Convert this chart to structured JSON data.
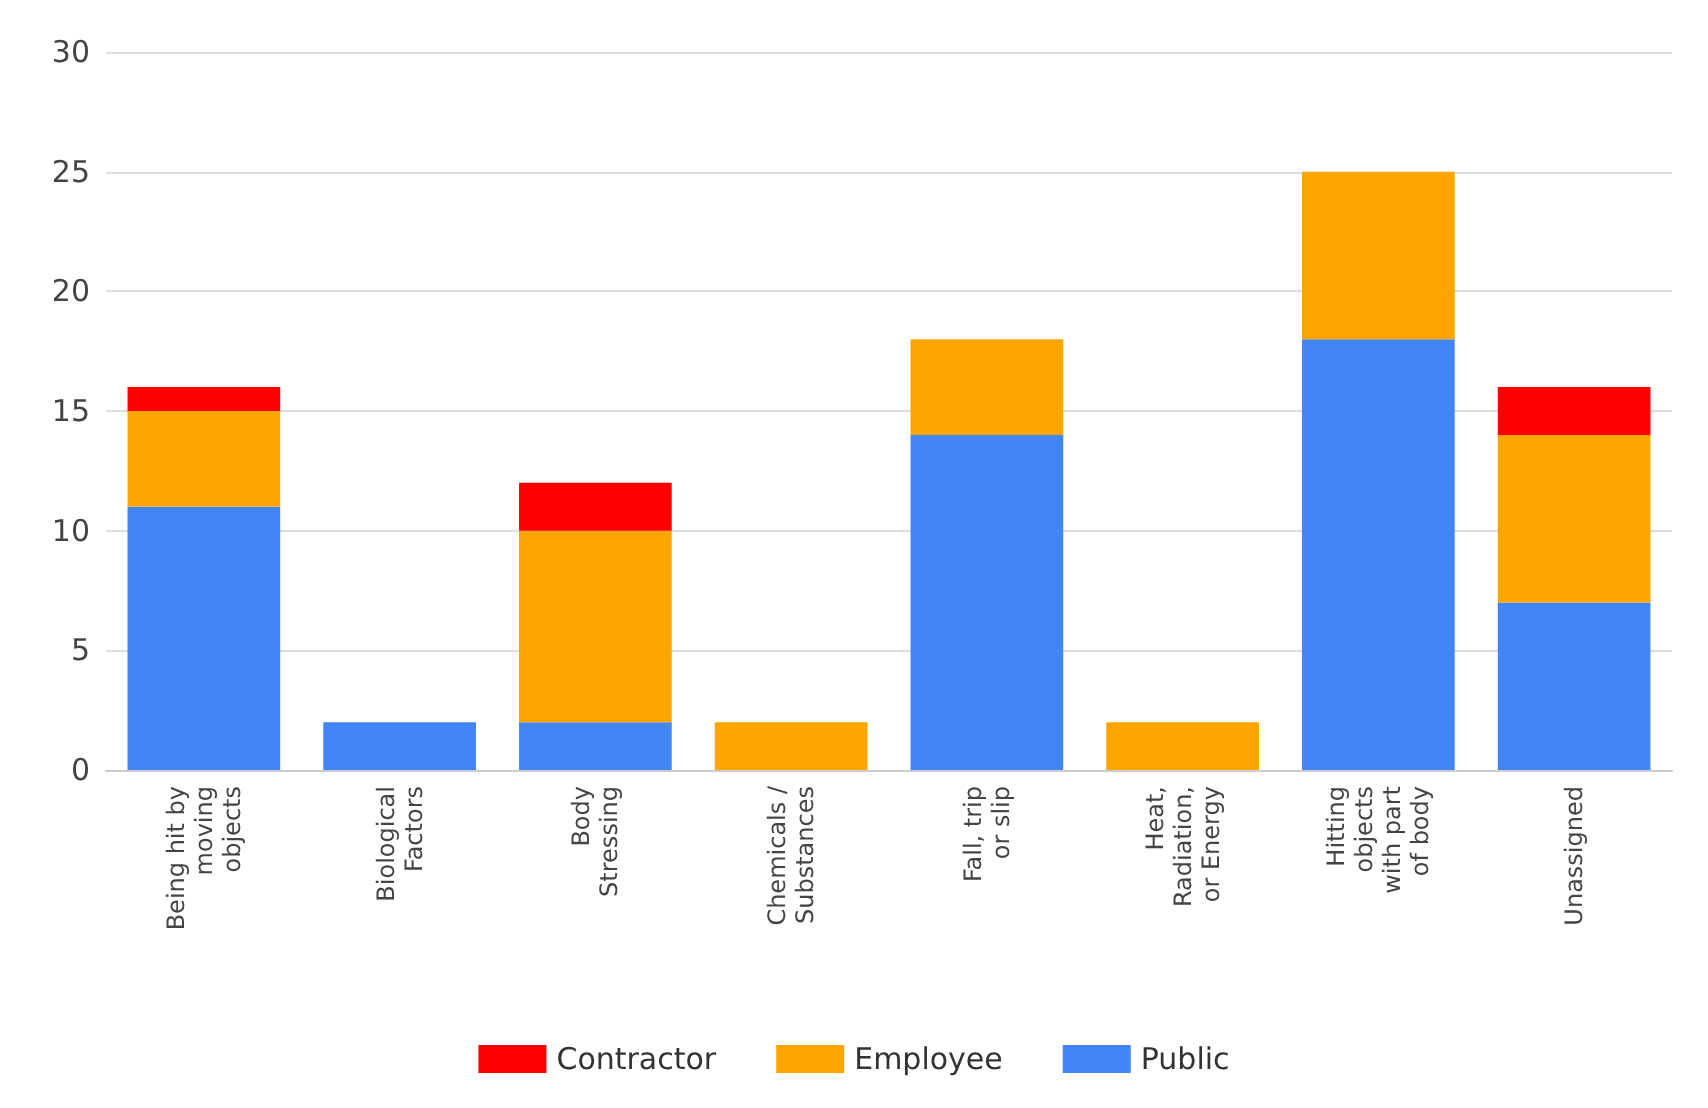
{
  "chart_data": {
    "type": "bar",
    "stacked": true,
    "categories": [
      "Being hit by\nmoving\nobjects",
      "Biological\nFactors",
      "Body\nStressing",
      "Chemicals /\nSubstances",
      "Fall, trip\nor slip",
      "Heat,\nRadiation,\nor Energy",
      "Hitting\nobjects\nwith part\nof body",
      "Unassigned"
    ],
    "series": [
      {
        "name": "Public",
        "color": "#4285f4",
        "values": [
          11,
          2,
          2,
          0,
          14,
          0,
          18,
          7
        ]
      },
      {
        "name": "Employee",
        "color": "#ffa500",
        "values": [
          4,
          0,
          8,
          2,
          4,
          2,
          7,
          7
        ]
      },
      {
        "name": "Contractor",
        "color": "#ff0000",
        "values": [
          1,
          0,
          2,
          0,
          0,
          0,
          0,
          2
        ]
      }
    ],
    "ylim": [
      0,
      30
    ],
    "yticks": [
      0,
      5,
      10,
      15,
      20,
      25,
      30
    ],
    "grid": "y",
    "legend": "bottom"
  }
}
